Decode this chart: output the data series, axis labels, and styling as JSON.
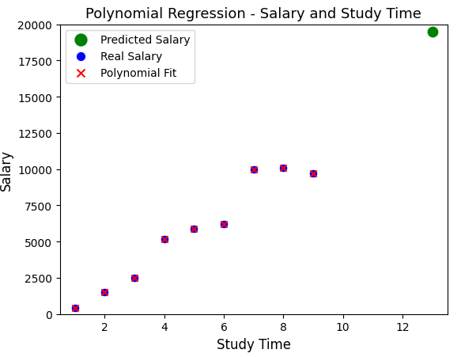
{
  "title": "Polynomial Regression - Salary and Study Time",
  "xlabel": "Study Time",
  "ylabel": "Salary",
  "real_salary_x": [
    1,
    2,
    3,
    4,
    5,
    6,
    7,
    8,
    9
  ],
  "real_salary_y": [
    400,
    1500,
    2500,
    5200,
    5900,
    6200,
    10000,
    10100,
    9700
  ],
  "poly_fit_x": [
    1,
    2,
    3,
    4,
    5,
    6,
    7,
    8,
    9
  ],
  "poly_fit_y": [
    400,
    1500,
    2500,
    5200,
    5900,
    6200,
    10000,
    10100,
    9700
  ],
  "predicted_x": [
    13
  ],
  "predicted_y": [
    19500
  ],
  "real_color": "blue",
  "poly_color": "red",
  "pred_color": "green",
  "ylim": [
    0,
    20000
  ],
  "xlim": [
    0.5,
    13.5
  ],
  "xticks": [
    2,
    4,
    6,
    8,
    10,
    12
  ],
  "background_color": "white",
  "legend_labels": [
    "Predicted Salary",
    "Real Salary",
    "Polynomial Fit"
  ],
  "title_fontsize": 13,
  "axis_label_fontsize": 12,
  "marker_size_real": 35,
  "marker_size_poly": 35,
  "marker_size_pred": 80,
  "marker_lw_poly": 1.5
}
